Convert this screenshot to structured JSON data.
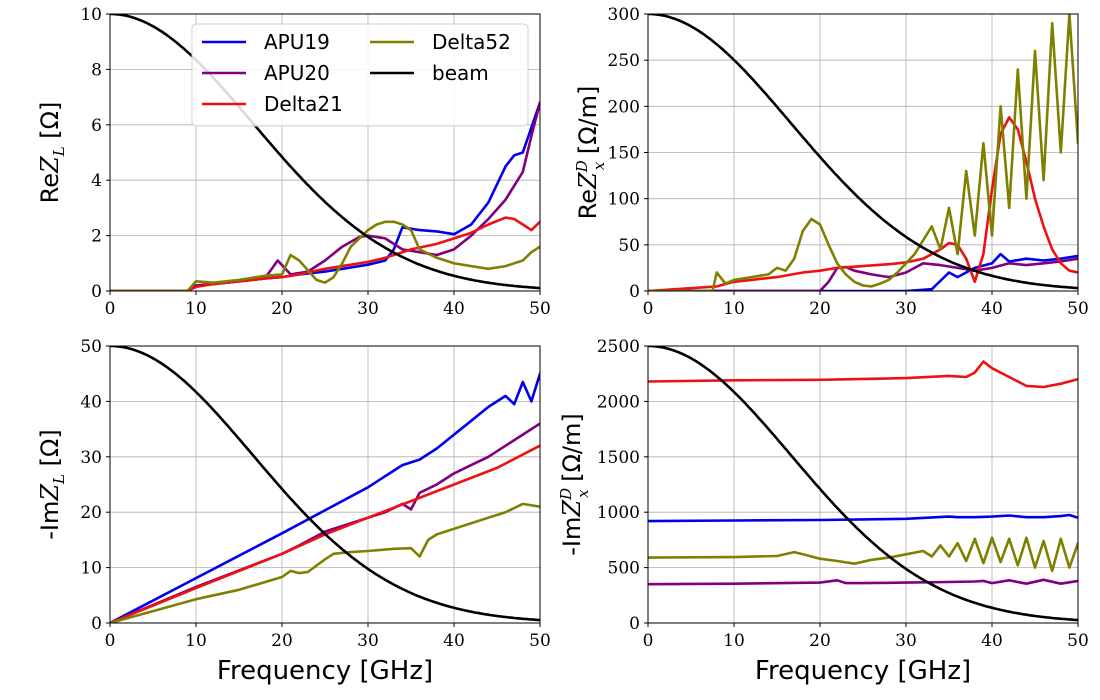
{
  "colors": {
    "APU19": "#0000ee",
    "APU20": "#800080",
    "Delta21": "#ee1111",
    "Delta52": "#808000",
    "beam": "#000000"
  },
  "chart_data": [
    {
      "id": "re_zl",
      "type": "line",
      "ylabel": "ReZ_L [Ω]",
      "xlabel": "",
      "xlim": [
        0,
        50
      ],
      "ylim": [
        0,
        10
      ],
      "xticks": [
        "0",
        "10",
        "20",
        "30",
        "40",
        "50"
      ],
      "yticks": [
        "0",
        "2",
        "4",
        "6",
        "8",
        "10"
      ],
      "grid": true,
      "legend": {
        "placement": "upper-center",
        "entries": [
          "APU19",
          "APU20",
          "Delta21",
          "Delta52",
          "beam"
        ]
      },
      "series": [
        {
          "name": "APU19",
          "x": [
            0,
            9,
            10,
            12,
            15,
            18,
            20,
            22,
            25,
            28,
            30,
            32,
            33,
            34,
            36,
            38,
            40,
            42,
            44,
            46,
            47,
            48,
            49,
            50
          ],
          "y": [
            0,
            0,
            0.2,
            0.25,
            0.35,
            0.45,
            0.5,
            0.6,
            0.7,
            0.85,
            0.95,
            1.1,
            1.5,
            2.3,
            2.2,
            2.15,
            2.05,
            2.4,
            3.2,
            4.5,
            4.9,
            5.0,
            5.9,
            6.8
          ]
        },
        {
          "name": "APU20",
          "x": [
            0,
            9,
            10,
            12,
            15,
            18,
            19.5,
            21,
            23,
            25,
            27,
            29,
            30,
            32,
            34,
            36,
            38,
            40,
            42,
            44,
            46,
            48,
            49,
            50
          ],
          "y": [
            0,
            0,
            0.2,
            0.25,
            0.35,
            0.45,
            1.1,
            0.6,
            0.7,
            1.1,
            1.6,
            1.95,
            2.0,
            1.9,
            1.5,
            1.4,
            1.3,
            1.5,
            2.0,
            2.6,
            3.3,
            4.3,
            5.6,
            6.8
          ]
        },
        {
          "name": "Delta21",
          "x": [
            0,
            9,
            10,
            12,
            15,
            18,
            20,
            22,
            25,
            28,
            30,
            32,
            35,
            38,
            40,
            42,
            44,
            46,
            47,
            48,
            49,
            50
          ],
          "y": [
            0,
            0,
            0.15,
            0.25,
            0.35,
            0.45,
            0.5,
            0.6,
            0.8,
            0.95,
            1.05,
            1.2,
            1.5,
            1.7,
            1.9,
            2.1,
            2.4,
            2.65,
            2.6,
            2.4,
            2.2,
            2.5
          ]
        },
        {
          "name": "Delta52",
          "x": [
            0,
            9,
            10,
            12,
            15,
            18,
            20,
            21,
            22,
            23,
            24,
            25,
            26,
            27,
            28,
            30,
            31,
            32,
            33,
            34,
            35,
            36,
            38,
            40,
            42,
            44,
            46,
            48,
            49,
            50
          ],
          "y": [
            0,
            0,
            0.35,
            0.3,
            0.4,
            0.55,
            0.6,
            1.3,
            1.1,
            0.75,
            0.4,
            0.3,
            0.5,
            1.0,
            1.6,
            2.2,
            2.4,
            2.5,
            2.5,
            2.4,
            2.2,
            1.5,
            1.2,
            1.0,
            0.9,
            0.8,
            0.9,
            1.1,
            1.4,
            1.6
          ]
        },
        {
          "name": "beam",
          "fn": "gauss",
          "peak": 10,
          "sigma": 16.6
        }
      ]
    },
    {
      "id": "re_zx",
      "type": "line",
      "ylabel": "ReZ_x^D [Ω/m]",
      "xlabel": "",
      "xlim": [
        0,
        50
      ],
      "ylim": [
        0,
        300
      ],
      "xticks": [
        "0",
        "10",
        "20",
        "30",
        "40",
        "50"
      ],
      "yticks": [
        "0",
        "50",
        "100",
        "150",
        "200",
        "250",
        "300"
      ],
      "grid": true,
      "series": [
        {
          "name": "APU19",
          "x": [
            0,
            30,
            33,
            35,
            36,
            38,
            40,
            41,
            42,
            44,
            46,
            48,
            50
          ],
          "y": [
            0,
            0,
            2,
            20,
            15,
            25,
            30,
            40,
            32,
            35,
            33,
            35,
            38
          ]
        },
        {
          "name": "APU20",
          "x": [
            0,
            20,
            21,
            22,
            23,
            24,
            26,
            28,
            30,
            32,
            34,
            36,
            38,
            40,
            42,
            44,
            46,
            48,
            50
          ],
          "y": [
            0,
            0,
            10,
            25,
            26,
            22,
            18,
            15,
            20,
            30,
            28,
            25,
            22,
            25,
            30,
            28,
            30,
            32,
            35
          ]
        },
        {
          "name": "Delta21",
          "x": [
            0,
            8,
            10,
            12,
            15,
            18,
            20,
            22,
            25,
            28,
            30,
            32,
            34,
            35,
            36,
            37,
            38,
            39,
            40,
            41,
            42,
            43,
            44,
            45,
            46,
            47,
            48,
            49,
            50
          ],
          "y": [
            0,
            5,
            10,
            12,
            15,
            20,
            22,
            25,
            27,
            29,
            31,
            35,
            45,
            52,
            50,
            35,
            10,
            40,
            110,
            170,
            188,
            175,
            140,
            100,
            70,
            45,
            30,
            22,
            20
          ]
        },
        {
          "name": "Delta52",
          "x": [
            0,
            7.5,
            8,
            9,
            10,
            12,
            14,
            15,
            16,
            17,
            18,
            19,
            20,
            21,
            22,
            23,
            24,
            25,
            26,
            27,
            28,
            29,
            30,
            31,
            32,
            33,
            34,
            35,
            36,
            37,
            38,
            39,
            40,
            41,
            42,
            43,
            44,
            45,
            46,
            47,
            48,
            49,
            50
          ],
          "y": [
            0,
            0,
            20,
            8,
            12,
            15,
            18,
            25,
            22,
            35,
            65,
            78,
            72,
            50,
            30,
            18,
            10,
            6,
            5,
            8,
            12,
            20,
            30,
            40,
            55,
            70,
            45,
            90,
            40,
            130,
            60,
            160,
            60,
            200,
            90,
            240,
            100,
            260,
            120,
            290,
            150,
            300,
            160
          ]
        },
        {
          "name": "beam",
          "fn": "gauss",
          "peak": 300,
          "sigma": 16.6
        }
      ]
    },
    {
      "id": "im_zl",
      "type": "line",
      "ylabel": "-ImZ_L [Ω]",
      "xlabel": "Frequency [GHz]",
      "xlim": [
        0,
        50
      ],
      "ylim": [
        0,
        50
      ],
      "xticks": [
        "0",
        "10",
        "20",
        "30",
        "40",
        "50"
      ],
      "yticks": [
        "0",
        "10",
        "20",
        "30",
        "40",
        "50"
      ],
      "grid": true,
      "series": [
        {
          "name": "APU19",
          "x": [
            0,
            9,
            10,
            20,
            30,
            33,
            34,
            36,
            38,
            40,
            42,
            44,
            46,
            47,
            48,
            49,
            50
          ],
          "y": [
            0,
            7.3,
            8.1,
            16.2,
            24.5,
            27.5,
            28.5,
            29.5,
            31.5,
            34,
            36.5,
            39,
            41,
            39.5,
            43.5,
            40,
            45
          ]
        },
        {
          "name": "APU20",
          "x": [
            0,
            10,
            20,
            22,
            25,
            28,
            30,
            32,
            34,
            35,
            36,
            38,
            40,
            42,
            44,
            46,
            48,
            50
          ],
          "y": [
            0,
            6.5,
            12.5,
            14,
            16.5,
            18,
            19,
            20,
            21.5,
            20.5,
            23.5,
            25,
            27,
            28.5,
            30,
            32,
            34,
            36
          ]
        },
        {
          "name": "Delta21",
          "x": [
            0,
            10,
            20,
            25,
            30,
            35,
            40,
            45,
            50
          ],
          "y": [
            0,
            6.3,
            12.5,
            16,
            19,
            22,
            25,
            28,
            32
          ]
        },
        {
          "name": "Delta52",
          "x": [
            0,
            10,
            15,
            20,
            21,
            22,
            23,
            25,
            26,
            28,
            30,
            33,
            35,
            36,
            37,
            38,
            40,
            42,
            44,
            46,
            48,
            50
          ],
          "y": [
            0,
            4.3,
            6.0,
            8.3,
            9.4,
            9.0,
            9.2,
            11.5,
            12.5,
            12.8,
            13,
            13.4,
            13.5,
            12,
            15,
            16,
            17,
            18,
            19,
            20,
            21.5,
            21
          ]
        },
        {
          "name": "beam",
          "fn": "gauss",
          "peak": 50,
          "sigma": 16.6
        }
      ]
    },
    {
      "id": "im_zx",
      "type": "line",
      "ylabel": "-ImZ_x^D [Ω/m]",
      "xlabel": "Frequency [GHz]",
      "xlim": [
        0,
        50
      ],
      "ylim": [
        0,
        2500
      ],
      "xticks": [
        "0",
        "10",
        "20",
        "30",
        "40",
        "50"
      ],
      "yticks": [
        "0",
        "500",
        "1000",
        "1500",
        "2000",
        "2500"
      ],
      "grid": true,
      "series": [
        {
          "name": "APU19",
          "x": [
            0,
            10,
            20,
            30,
            35,
            36,
            38,
            40,
            42,
            44,
            46,
            48,
            49,
            50
          ],
          "y": [
            920,
            925,
            930,
            940,
            960,
            955,
            955,
            960,
            970,
            955,
            955,
            965,
            975,
            950
          ]
        },
        {
          "name": "APU20",
          "x": [
            0,
            10,
            20,
            22,
            23,
            25,
            30,
            35,
            38,
            39,
            40,
            42,
            44,
            46,
            48,
            50
          ],
          "y": [
            350,
            355,
            365,
            385,
            360,
            360,
            365,
            370,
            375,
            380,
            360,
            385,
            355,
            390,
            355,
            380
          ]
        },
        {
          "name": "Delta21",
          "x": [
            0,
            10,
            20,
            30,
            35,
            37,
            38,
            39,
            40,
            42,
            44,
            46,
            48,
            50
          ],
          "y": [
            2180,
            2190,
            2195,
            2210,
            2230,
            2220,
            2260,
            2360,
            2300,
            2220,
            2140,
            2130,
            2160,
            2200
          ]
        },
        {
          "name": "Delta52",
          "x": [
            0,
            10,
            15,
            17,
            18,
            20,
            22,
            24,
            26,
            28,
            30,
            32,
            33,
            34,
            35,
            36,
            37,
            38,
            39,
            40,
            41,
            42,
            43,
            44,
            45,
            46,
            47,
            48,
            49,
            50
          ],
          "y": [
            590,
            595,
            605,
            640,
            620,
            580,
            560,
            535,
            570,
            590,
            620,
            650,
            600,
            700,
            600,
            720,
            560,
            760,
            540,
            770,
            550,
            760,
            520,
            770,
            500,
            740,
            470,
            760,
            500,
            720
          ]
        },
        {
          "name": "beam",
          "fn": "gauss",
          "peak": 2500,
          "sigma": 16.6
        }
      ]
    }
  ]
}
